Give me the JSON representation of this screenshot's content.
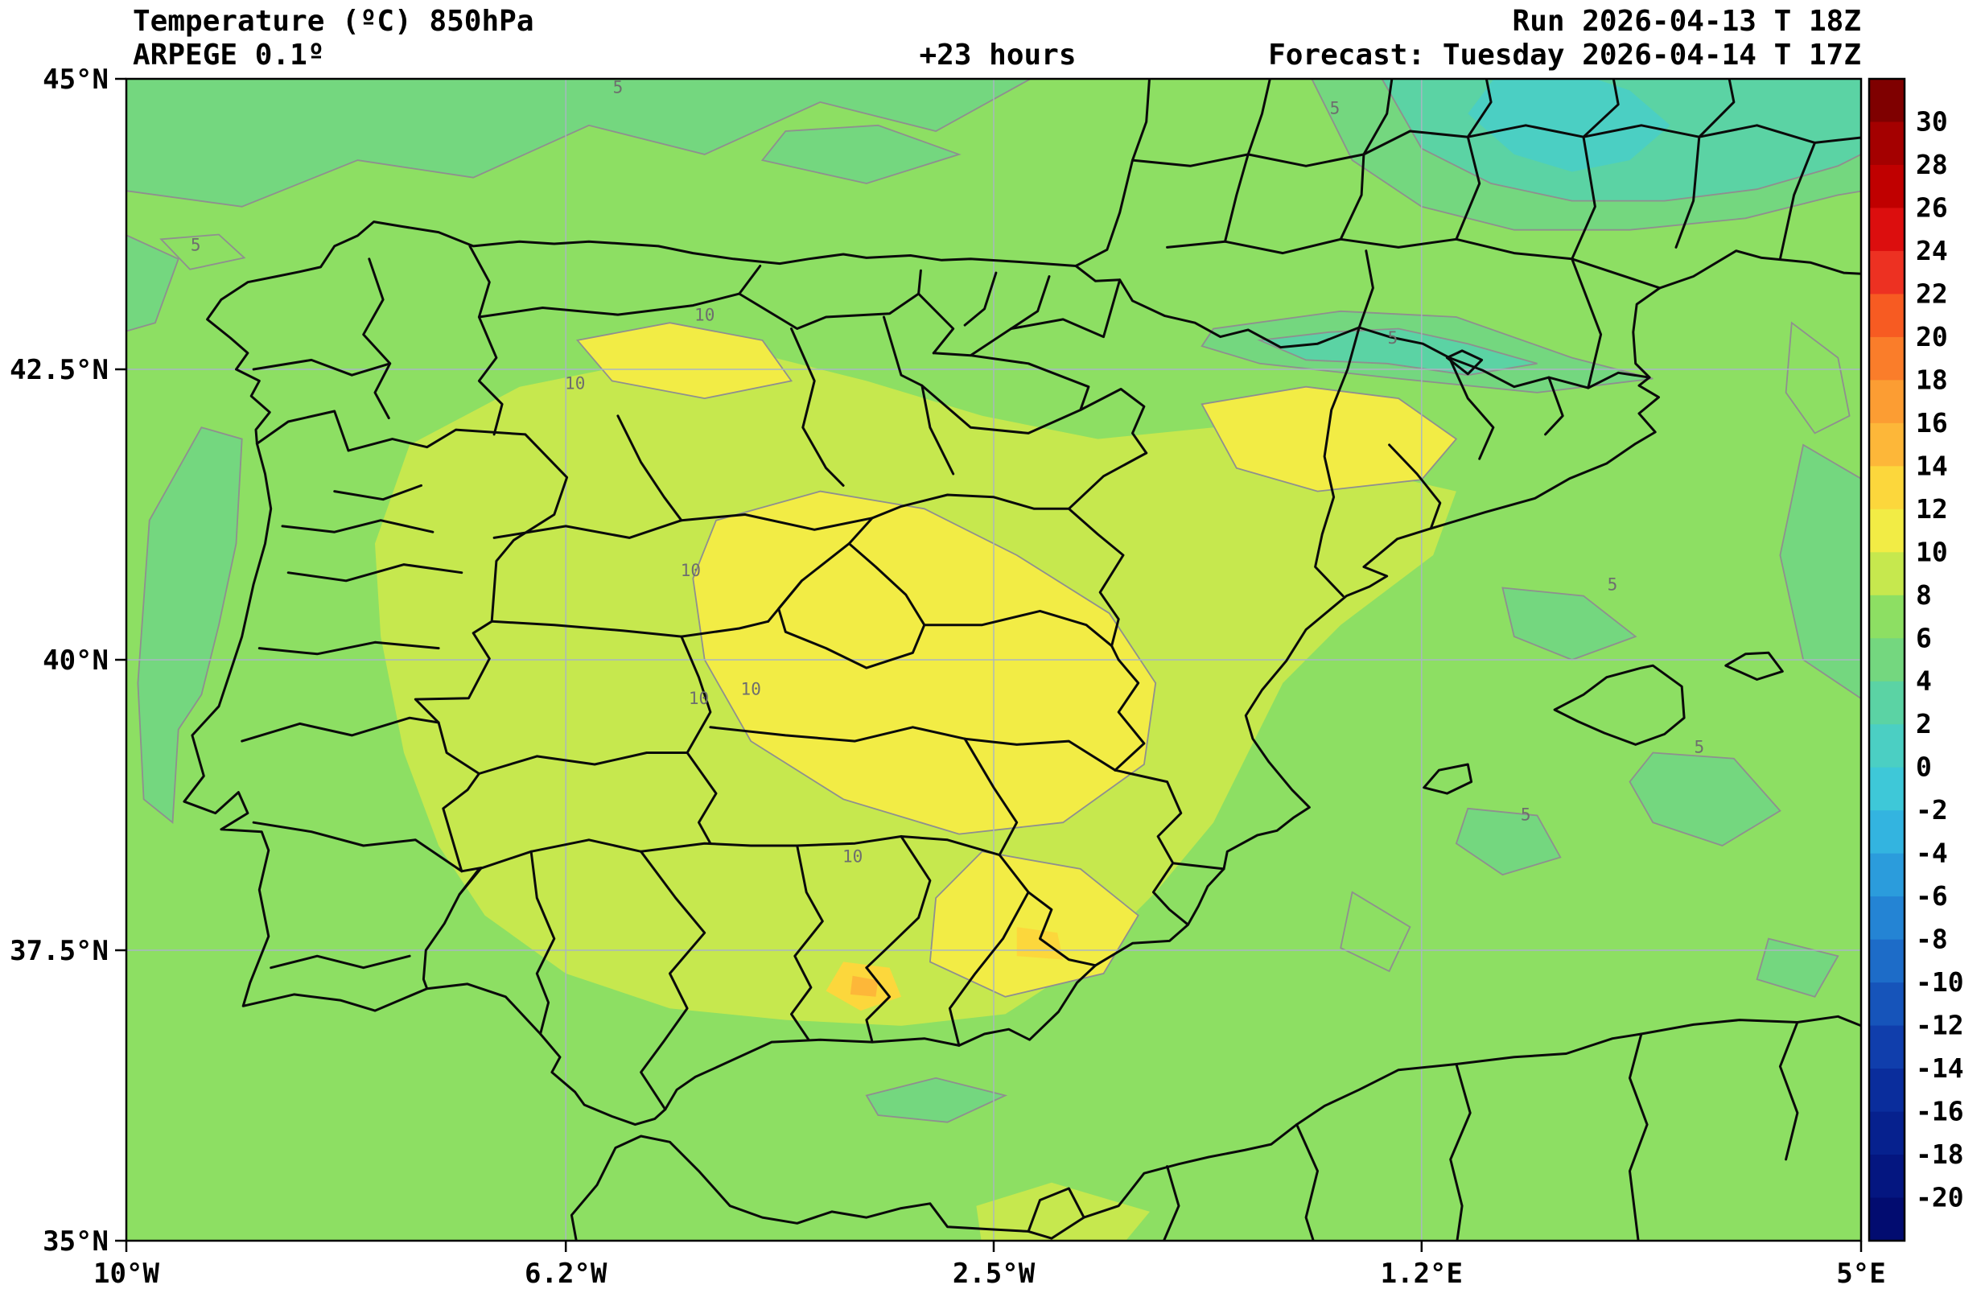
{
  "header": {
    "title": "Temperature (ºC) 850hPa",
    "model": "ARPEGE 0.1º",
    "forecast_hour": "+23 hours",
    "run": "Run 2026-04-13 T 18Z",
    "valid": "Forecast: Tuesday 2026-04-14 T 17Z"
  },
  "axes": {
    "y_ticks": [
      {
        "label": "45°N",
        "lat": 45
      },
      {
        "label": "42.5°N",
        "lat": 42.5
      },
      {
        "label": "40°N",
        "lat": 40
      },
      {
        "label": "37.5°N",
        "lat": 37.5
      },
      {
        "label": "35°N",
        "lat": 35
      }
    ],
    "x_ticks": [
      {
        "label": "10°W",
        "lon": -10
      },
      {
        "label": "6.2°W",
        "lon": -6.2
      },
      {
        "label": "2.5°W",
        "lon": -2.5
      },
      {
        "label": "1.2°E",
        "lon": 1.2
      },
      {
        "label": "5°E",
        "lon": 5
      }
    ]
  },
  "colorbar": {
    "tick_values": [
      30,
      28,
      26,
      24,
      22,
      20,
      18,
      16,
      14,
      12,
      10,
      8,
      6,
      4,
      2,
      0,
      -2,
      -4,
      -6,
      -8,
      -10,
      -12,
      -14,
      -16,
      -18,
      -20
    ],
    "band_colors_top_to_bottom": [
      "#7f0000",
      "#a40000",
      "#c00000",
      "#dc0e0e",
      "#ed3122",
      "#f75b22",
      "#fa7d2a",
      "#fc9d33",
      "#fdb739",
      "#fcd73c",
      "#f2ec45",
      "#c6e84e",
      "#8ddf63",
      "#74d77f",
      "#5bd3a4",
      "#4bcfc3",
      "#3ec8d8",
      "#33b4e0",
      "#2b9cdc",
      "#2484d4",
      "#1d6cc8",
      "#1654ba",
      "#103eac",
      "#0a2d9c",
      "#06218e",
      "#041680",
      "#020c70"
    ]
  },
  "field_colors": {
    "band_0_2": "#4bcfc3",
    "band_2_4": "#5bd3a4",
    "band_4_6": "#74d77f",
    "band_6_8": "#8ddf63",
    "band_8_10": "#c6e84e",
    "band_10_12": "#f2ec45",
    "band_12_14": "#fcd73c",
    "band_14_16": "#fdb739"
  },
  "contour_labels": [
    {
      "value": "10",
      "lon": -5.0,
      "lat": 42.92
    },
    {
      "value": "10",
      "lon": -6.12,
      "lat": 42.33
    },
    {
      "value": "10",
      "lon": -5.12,
      "lat": 40.72
    },
    {
      "value": "10",
      "lon": -5.05,
      "lat": 39.62
    },
    {
      "value": "10",
      "lon": -4.6,
      "lat": 39.7
    },
    {
      "value": "10",
      "lon": -3.72,
      "lat": 38.26
    },
    {
      "value": "5",
      "lon": -5.75,
      "lat": 44.88
    },
    {
      "value": "5",
      "lon": -9.4,
      "lat": 43.52
    },
    {
      "value": "5",
      "lon": 0.95,
      "lat": 42.72
    },
    {
      "value": "5",
      "lon": 0.45,
      "lat": 44.7
    },
    {
      "value": "5",
      "lon": 2.85,
      "lat": 40.6
    },
    {
      "value": "5",
      "lon": 3.6,
      "lat": 39.2
    },
    {
      "value": "5",
      "lon": 2.1,
      "lat": 38.62
    }
  ],
  "chart_data": {
    "type": "filled_contour_map",
    "variable": "Temperature (ºC) at 850hPa",
    "model": "ARPEGE 0.1º",
    "run": "2026-04-13 18Z",
    "valid": "Tuesday 2026-04-14 17Z",
    "forecast_hours": 23,
    "lon_range_deg": [
      -10,
      5
    ],
    "lat_range_deg": [
      35,
      45
    ],
    "colorbar_range_c": [
      -20,
      30
    ],
    "colorbar_step_c": 2,
    "labeled_contours_c": [
      5,
      10
    ],
    "approx_field_values_c": {
      "central_iberia_plateau": "10 to 12",
      "burgos_leon_area": "10 to 12",
      "ebro_valley_northeast_spain": "10 to 12",
      "granada_murcia_hotspots": "12 to 16",
      "coastal_iberia_and_portugal": "6 to 8",
      "atlantic_and_mediterranean_sea": "4 to 8",
      "pyrenees": "2 to 6",
      "southeast_france_massif_central": "0 to 4"
    }
  }
}
